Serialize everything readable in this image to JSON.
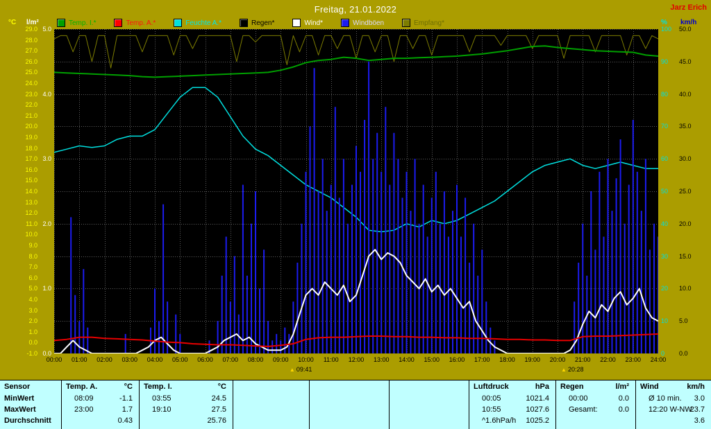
{
  "window": {
    "title": "Freitag, 21.01.2022",
    "station": "Jarz Erich"
  },
  "legend": {
    "items": [
      {
        "label": "Temp. I.*",
        "color": "#00a000",
        "text_color": "#00b000"
      },
      {
        "label": "Temp. A.*",
        "color": "#ff0000",
        "text_color": "#ff1010"
      },
      {
        "label": "Feuchte A.*",
        "color": "#00e0e0",
        "text_color": "#00e8e8"
      },
      {
        "label": "Regen*",
        "color": "#000000",
        "text_color": "#000000"
      },
      {
        "label": "Wind*",
        "color": "#ffffff",
        "text_color": "#ffffff"
      },
      {
        "label": "Windböen",
        "color": "#1c1cf0",
        "text_color": "#dcdcff"
      },
      {
        "label": "Empfang*",
        "color": "#7d7d00",
        "text_color": "#6e6e00"
      }
    ]
  },
  "axes": {
    "temp": {
      "unit": "°C",
      "min": -1,
      "max": 29,
      "color": "#ffff00",
      "labels": [
        "29.0",
        "28.0",
        "27.0",
        "26.0",
        "25.0",
        "24.0",
        "23.0",
        "22.0",
        "21.0",
        "20.0",
        "19.0",
        "18.0",
        "17.0",
        "16.0",
        "15.0",
        "14.0",
        "13.0",
        "12.0",
        "11.0",
        "10.0",
        "9.0",
        "8.0",
        "7.0",
        "6.0",
        "5.0",
        "4.0",
        "3.0",
        "2.0",
        "1.0",
        "0.0",
        "-1.0"
      ]
    },
    "rain": {
      "unit": "l/m²",
      "min": 0,
      "max": 5,
      "color": "#ffffff",
      "labels": [
        "5.0",
        "4.0",
        "3.0",
        "2.0",
        "1.0",
        "0.0"
      ]
    },
    "percent": {
      "unit": "%",
      "min": 0,
      "max": 100,
      "color": "#00e0e0",
      "labels": [
        "100",
        "90",
        "80",
        "70",
        "60",
        "50",
        "40",
        "30",
        "20",
        "10",
        "0"
      ]
    },
    "wind": {
      "unit": "km/h",
      "min": 0,
      "max": 50,
      "color": "#000000",
      "unit_color": "#0000cc",
      "labels": [
        "50.0",
        "45.0",
        "40.0",
        "35.0",
        "30.0",
        "25.0",
        "20.0",
        "15.0",
        "10.0",
        "5.0",
        "0.0"
      ]
    }
  },
  "x_axis": {
    "labels": [
      "00:00",
      "01:00",
      "02:00",
      "03:00",
      "04:00",
      "05:00",
      "06:00",
      "07:00",
      "08:00",
      "09:00",
      "10:00",
      "11:00",
      "12:00",
      "13:00",
      "14:00",
      "15:00",
      "16:00",
      "17:00",
      "18:00",
      "19:00",
      "20:00",
      "21:00",
      "22:00",
      "23:00",
      "24:00"
    ]
  },
  "markers": [
    {
      "time": "09:41",
      "hour": 9.68
    },
    {
      "time": "20:28",
      "hour": 20.47
    }
  ],
  "chart_data": {
    "type": "line",
    "title": "Freitag, 21.01.2022",
    "x_unit": "hours",
    "x_range": [
      0,
      24
    ],
    "grid": true,
    "background": "#000000",
    "series": [
      {
        "name": "Regen",
        "axis": "rain",
        "color": "#000000",
        "style": "line",
        "x": [
          0,
          24
        ],
        "values": [
          0,
          0
        ]
      },
      {
        "name": "Empfang",
        "axis": "percent",
        "color": "#7d7d00",
        "style": "line",
        "per_hour": 4,
        "values": [
          97,
          98,
          98,
          93,
          98,
          98,
          90,
          98,
          98,
          88,
          98,
          98,
          98,
          98,
          93,
          98,
          98,
          98,
          98,
          92,
          98,
          98,
          94,
          98,
          98,
          98,
          98,
          98,
          98,
          90,
          98,
          98,
          96,
          98,
          98,
          98,
          98,
          89,
          98,
          93,
          98,
          98,
          92,
          98,
          98,
          94,
          98,
          98,
          91,
          98,
          98,
          93,
          98,
          98,
          90,
          98,
          98,
          94,
          98,
          98,
          92,
          98,
          98,
          98,
          98,
          98,
          93,
          98,
          98,
          98,
          98,
          95,
          98,
          98,
          98,
          98,
          94,
          98,
          98,
          98,
          98,
          91,
          98,
          98,
          98,
          98,
          93,
          98,
          98,
          98,
          98,
          92,
          98,
          98,
          94,
          98,
          97
        ]
      },
      {
        "name": "Feuchte A.",
        "axis": "percent",
        "color": "#00e0e0",
        "style": "line",
        "per_hour": 2,
        "values": [
          62,
          63,
          64,
          63.5,
          64,
          66,
          67,
          67,
          69,
          74,
          79,
          82,
          82,
          79,
          73,
          67,
          63,
          61,
          58,
          55,
          52,
          50,
          48,
          45,
          42,
          38,
          37.5,
          38,
          40,
          39,
          41,
          40,
          41,
          43,
          45,
          47,
          50,
          53,
          56,
          58,
          59,
          60,
          58,
          57,
          58,
          59,
          58,
          57,
          57
        ]
      },
      {
        "name": "Windböen",
        "axis": "wind",
        "color": "#1c1cf0",
        "style": "impulse",
        "per_hour": 6,
        "values": [
          0,
          0,
          0,
          0,
          21,
          9,
          5,
          13,
          4,
          0,
          0,
          0,
          0,
          0,
          0,
          0,
          0,
          3,
          0,
          0,
          0,
          0,
          0,
          4,
          10,
          5,
          23,
          8,
          0,
          6,
          3,
          0,
          0,
          0,
          0,
          0,
          0,
          2,
          0,
          5,
          12,
          18,
          8,
          15,
          6,
          26,
          12,
          20,
          25,
          10,
          16,
          5,
          2,
          3,
          2,
          4,
          3,
          8,
          14,
          20,
          28,
          35,
          44,
          25,
          30,
          22,
          26,
          38,
          24,
          30,
          20,
          26,
          32,
          28,
          36,
          45,
          30,
          34,
          28,
          38,
          26,
          34,
          30,
          24,
          28,
          22,
          30,
          20,
          26,
          18,
          24,
          28,
          20,
          25,
          18,
          22,
          26,
          18,
          24,
          14,
          20,
          12,
          16,
          8,
          4,
          2,
          0,
          0,
          0,
          0,
          0,
          0,
          0,
          0,
          0,
          0,
          0,
          0,
          0,
          0,
          0,
          0,
          0,
          0,
          8,
          14,
          20,
          12,
          25,
          16,
          28,
          18,
          30,
          22,
          27,
          33,
          20,
          26,
          36,
          28,
          22,
          30,
          16,
          20,
          18
        ]
      },
      {
        "name": "Wind",
        "axis": "wind",
        "color": "#ffffff",
        "style": "line",
        "per_hour": 4,
        "values": [
          0,
          0,
          1,
          2,
          1,
          0.5,
          0,
          0,
          0,
          0,
          0,
          0,
          0,
          0,
          0.5,
          1,
          2,
          2.5,
          1.5,
          0.5,
          0,
          0,
          0,
          0,
          0,
          0.5,
          1,
          2,
          2.5,
          3,
          2,
          2.5,
          1.5,
          1,
          0.5,
          0.5,
          0.5,
          1,
          3,
          6,
          9,
          10,
          9,
          11,
          10,
          9,
          10.5,
          8,
          9,
          12,
          15,
          16,
          14.5,
          15.5,
          15,
          14,
          12,
          11,
          10,
          11.5,
          9.5,
          10.5,
          9,
          10,
          8.5,
          7,
          8,
          5,
          3.5,
          2,
          1,
          0.5,
          0,
          0,
          0,
          0,
          0,
          0,
          0,
          0,
          0,
          0,
          0.5,
          2,
          4.5,
          6.5,
          5.5,
          7.5,
          6.5,
          8.5,
          9.5,
          7.5,
          8.5,
          10,
          7,
          5.5,
          5
        ]
      },
      {
        "name": "Temp. A.",
        "axis": "temp",
        "color": "#e80000",
        "style": "line",
        "per_hour": 2,
        "values": [
          0.2,
          0.3,
          0.5,
          0.5,
          0.4,
          0.35,
          0.3,
          0.25,
          0.15,
          0.05,
          0.0,
          -0.1,
          -0.15,
          -0.2,
          -0.2,
          -0.25,
          -0.3,
          -0.35,
          -0.25,
          -0.1,
          0.3,
          0.45,
          0.5,
          0.5,
          0.55,
          0.6,
          0.6,
          0.55,
          0.55,
          0.5,
          0.5,
          0.45,
          0.45,
          0.4,
          0.4,
          0.35,
          0.3,
          0.3,
          0.25,
          0.25,
          0.2,
          0.2,
          0.55,
          0.6,
          0.6,
          0.65,
          0.7,
          0.75,
          0.8
        ]
      },
      {
        "name": "Temp. I.",
        "axis": "temp",
        "color": "#00a000",
        "style": "line",
        "per_hour": 2,
        "values": [
          25.0,
          24.95,
          24.9,
          24.85,
          24.8,
          24.75,
          24.7,
          24.6,
          24.55,
          24.6,
          24.65,
          24.7,
          24.75,
          24.8,
          24.85,
          24.9,
          24.95,
          25.0,
          25.2,
          25.5,
          25.9,
          26.1,
          26.2,
          26.4,
          26.3,
          26.1,
          26.2,
          26.3,
          26.3,
          26.35,
          26.4,
          26.45,
          26.5,
          26.6,
          26.7,
          26.85,
          27.0,
          27.2,
          27.4,
          27.45,
          27.3,
          27.2,
          27.1,
          27.0,
          26.95,
          26.9,
          26.85,
          26.6,
          26.5
        ]
      }
    ]
  },
  "stats_table": {
    "row_labels": [
      "Sensor",
      "MinWert",
      "MaxWert",
      "Durchschnitt"
    ],
    "sections": [
      {
        "name": "Temp. A.",
        "unit": "°C",
        "rows": [
          [
            "08:09",
            "-1.1"
          ],
          [
            "23:00",
            "1.7"
          ],
          [
            "",
            "0.43"
          ]
        ]
      },
      {
        "name": "Temp. I.",
        "unit": "°C",
        "rows": [
          [
            "03:55",
            "24.5"
          ],
          [
            "19:10",
            "27.5"
          ],
          [
            "",
            "25.76"
          ]
        ]
      },
      {
        "name": "",
        "unit": "",
        "rows": [
          [
            "",
            ""
          ],
          [
            "",
            ""
          ],
          [
            "",
            ""
          ]
        ]
      },
      {
        "name": "",
        "unit": "",
        "rows": [
          [
            "",
            ""
          ],
          [
            "",
            ""
          ],
          [
            "",
            ""
          ]
        ]
      },
      {
        "name": "",
        "unit": "",
        "rows": [
          [
            "",
            ""
          ],
          [
            "",
            ""
          ],
          [
            "",
            ""
          ]
        ]
      },
      {
        "name": "Luftdruck",
        "unit": "hPa",
        "rows": [
          [
            "00:05",
            "1021.4"
          ],
          [
            "10:55",
            "1027.6"
          ],
          [
            "^1.6hPa/h",
            "1025.2"
          ]
        ]
      },
      {
        "name": "Regen",
        "unit": "l/m²",
        "rows": [
          [
            "00:00",
            "0.0"
          ],
          [
            "Gesamt:",
            "0.0"
          ],
          [
            "",
            ""
          ]
        ]
      },
      {
        "name": "Wind",
        "unit": "km/h",
        "rows": [
          [
            "Ø 10 min.",
            "3.0"
          ],
          [
            "12:20 W-NW",
            "23.7"
          ],
          [
            "",
            "3.6"
          ]
        ]
      }
    ]
  }
}
